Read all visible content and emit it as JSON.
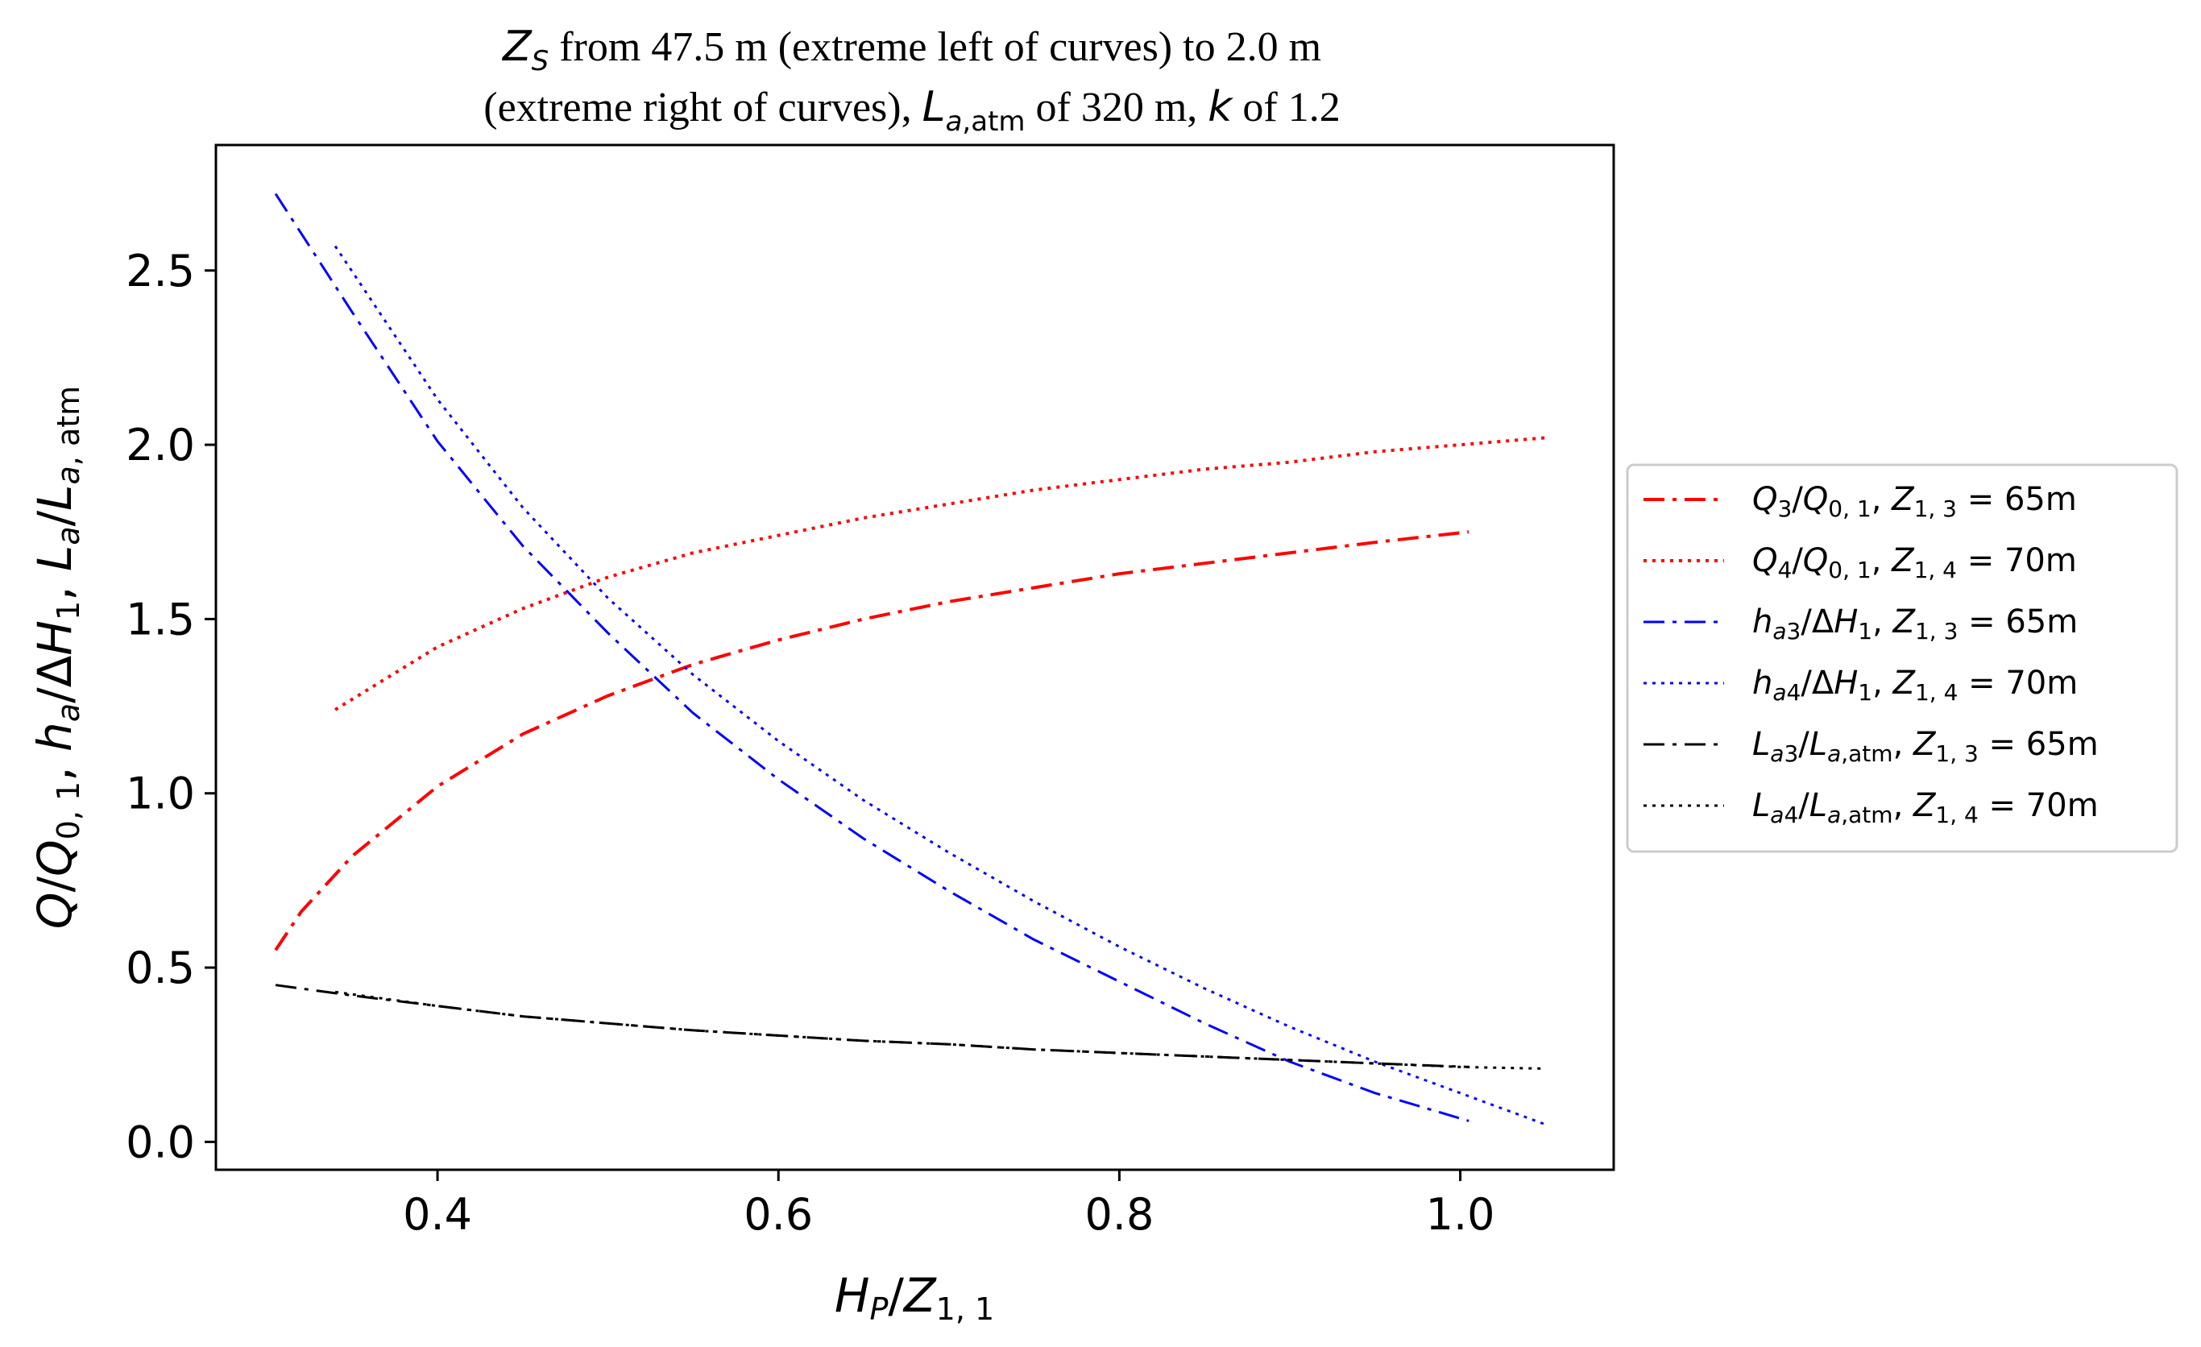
{
  "chart_data": {
    "type": "line",
    "title_line1": "Z_S from 47.5 m (extreme left of curves) to 2.0 m",
    "title_line2": "(extreme right of curves), L_a,atm of 320 m, k of 1.2",
    "xlabel": "H_P/Z_1,1",
    "ylabel": "Q/Q_0,1, h_a/ΔH_1, L_a/L_a,atm",
    "xlim": [
      0.27,
      1.09
    ],
    "ylim": [
      -0.08,
      2.86
    ],
    "xticks": [
      "0.4",
      "0.6",
      "0.8",
      "1.0"
    ],
    "xtick_values": [
      0.4,
      0.6,
      0.8,
      1.0
    ],
    "yticks": [
      "0.0",
      "0.5",
      "1.0",
      "1.5",
      "2.0",
      "2.5"
    ],
    "ytick_values": [
      0.0,
      0.5,
      1.0,
      1.5,
      2.0,
      2.5
    ],
    "legend_position": "right-outside",
    "series": [
      {
        "name": "Q_3/Q_0,1, Z_1,3 = 65m",
        "color": "#ff0000",
        "style": "dashdot",
        "x": [
          0.305,
          0.32,
          0.35,
          0.4,
          0.45,
          0.5,
          0.55,
          0.6,
          0.65,
          0.7,
          0.75,
          0.8,
          0.85,
          0.9,
          0.95,
          1.005
        ],
        "y": [
          0.55,
          0.66,
          0.82,
          1.02,
          1.17,
          1.28,
          1.37,
          1.44,
          1.5,
          1.55,
          1.59,
          1.63,
          1.66,
          1.69,
          1.72,
          1.75
        ]
      },
      {
        "name": "Q_4/Q_0,1, Z_1,4 = 70m",
        "color": "#ff0000",
        "style": "dotted",
        "x": [
          0.34,
          0.4,
          0.45,
          0.5,
          0.55,
          0.6,
          0.65,
          0.7,
          0.75,
          0.8,
          0.85,
          0.9,
          0.95,
          1.0,
          1.05
        ],
        "y": [
          1.24,
          1.42,
          1.53,
          1.62,
          1.69,
          1.74,
          1.79,
          1.83,
          1.87,
          1.9,
          1.93,
          1.95,
          1.98,
          2.0,
          2.02
        ]
      },
      {
        "name": "h_a3/ΔH_1, Z_1,3 = 65m",
        "color": "#0000ff",
        "style": "dashdot",
        "x": [
          0.305,
          0.35,
          0.4,
          0.45,
          0.5,
          0.55,
          0.6,
          0.65,
          0.7,
          0.75,
          0.8,
          0.85,
          0.9,
          0.95,
          1.005
        ],
        "y": [
          2.72,
          2.38,
          2.01,
          1.71,
          1.46,
          1.23,
          1.04,
          0.87,
          0.72,
          0.58,
          0.46,
          0.34,
          0.23,
          0.14,
          0.06
        ]
      },
      {
        "name": "h_a4/ΔH_1, Z_1,4 = 70m",
        "color": "#0000ff",
        "style": "dotted",
        "x": [
          0.34,
          0.4,
          0.45,
          0.5,
          0.55,
          0.6,
          0.65,
          0.7,
          0.75,
          0.8,
          0.85,
          0.9,
          0.95,
          1.0,
          1.05
        ],
        "y": [
          2.57,
          2.13,
          1.82,
          1.56,
          1.34,
          1.15,
          0.98,
          0.83,
          0.69,
          0.56,
          0.44,
          0.33,
          0.23,
          0.14,
          0.05
        ]
      },
      {
        "name": "L_a3/L_a,atm, Z_1,3 = 65m",
        "color": "#000000",
        "style": "dashdot",
        "x": [
          0.305,
          0.35,
          0.4,
          0.45,
          0.5,
          0.55,
          0.6,
          0.65,
          0.7,
          0.75,
          0.8,
          0.85,
          0.9,
          0.95,
          1.005
        ],
        "y": [
          0.45,
          0.42,
          0.39,
          0.36,
          0.34,
          0.32,
          0.305,
          0.29,
          0.28,
          0.265,
          0.255,
          0.245,
          0.235,
          0.225,
          0.215
        ]
      },
      {
        "name": "L_a4/L_a,atm, Z_1,4 = 70m",
        "color": "#000000",
        "style": "dotted",
        "x": [
          0.34,
          0.4,
          0.45,
          0.5,
          0.55,
          0.6,
          0.65,
          0.7,
          0.75,
          0.8,
          0.85,
          0.9,
          0.95,
          1.0,
          1.05
        ],
        "y": [
          0.43,
          0.39,
          0.36,
          0.34,
          0.32,
          0.305,
          0.29,
          0.28,
          0.265,
          0.255,
          0.245,
          0.235,
          0.225,
          0.215,
          0.21
        ]
      }
    ]
  }
}
